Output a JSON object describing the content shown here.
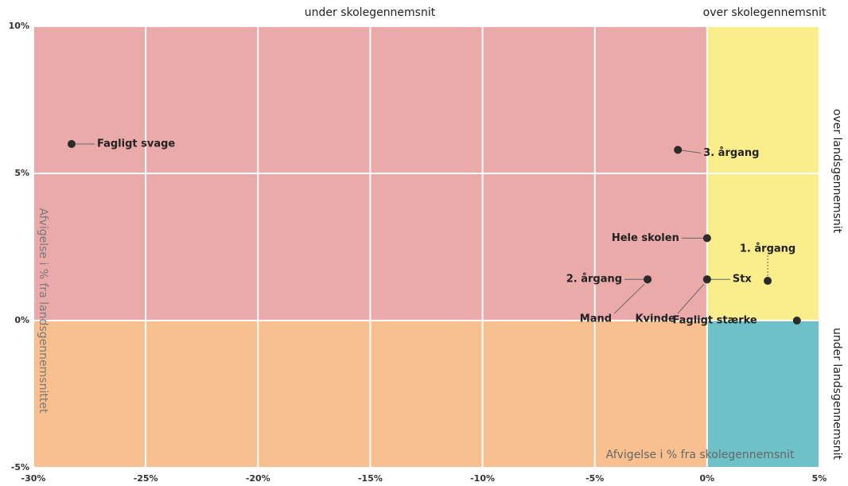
{
  "chart_data": {
    "type": "scatter",
    "x_label": "Afvigelse i % fra skolegennemsnit",
    "y_label": "Afvigelse i % fra landsgennemsnittet",
    "region_labels": {
      "top_left": "under skolegennemsnit",
      "top_right": "over skolegennemsnit",
      "right_upper": "over landsgennemsnit",
      "right_lower": "under landsgennemsnit"
    },
    "quadrant_colors": {
      "upper_left": "#eaaaa9",
      "lower_left": "#f8c08f",
      "upper_right": "#faee8c",
      "lower_right": "#6ec1c6"
    },
    "point_color": "#2b2b2b",
    "grid": true,
    "xlim": [
      -30,
      5
    ],
    "ylim": [
      -5,
      10
    ],
    "xticks": [
      {
        "value": -30,
        "label": "-30%"
      },
      {
        "value": -25,
        "label": "-25%"
      },
      {
        "value": -20,
        "label": "-20%"
      },
      {
        "value": -15,
        "label": "-15%"
      },
      {
        "value": -10,
        "label": "-10%"
      },
      {
        "value": -5,
        "label": "-5%"
      },
      {
        "value": 0,
        "label": "0%"
      },
      {
        "value": 5,
        "label": "5%"
      }
    ],
    "yticks": [
      {
        "value": -5,
        "label": "-5%"
      },
      {
        "value": 0,
        "label": "0%"
      },
      {
        "value": 5,
        "label": "5%"
      },
      {
        "value": 10,
        "label": "10%"
      }
    ],
    "points": [
      {
        "label": "Fagligt svage",
        "x": -28.3,
        "y": 6.0
      },
      {
        "label": "3. årgang",
        "x": -1.3,
        "y": 5.8
      },
      {
        "label": "Hele skolen",
        "x": 0,
        "y": 2.8
      },
      {
        "label": "1. årgang",
        "x": 2.7,
        "y": 1.35
      },
      {
        "label": "2. årgang",
        "x": -2.65,
        "y": 1.4
      },
      {
        "label": "Stx",
        "x": 0,
        "y": 1.4
      },
      {
        "label": "Mand",
        "x": -2.65,
        "y": 1.4
      },
      {
        "label": "Kvinde",
        "x": 0,
        "y": 1.4
      },
      {
        "label": "Fagligt stærke",
        "x": 4.0,
        "y": 0
      }
    ]
  }
}
